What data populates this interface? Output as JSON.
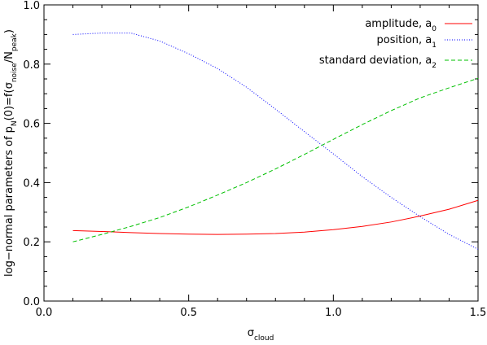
{
  "chart_data": {
    "type": "line",
    "xlabel": {
      "main": "σ",
      "sub": "cloud"
    },
    "ylabel": {
      "prefix": "log−normal parameters of p",
      "sub1": "N",
      "mid": "(0)=f(σ",
      "sub2": "noise",
      "slash": "/N",
      "sub3": "peak",
      "suffix": ")"
    },
    "xlim": [
      0.0,
      1.5
    ],
    "ylim": [
      0.0,
      1.0
    ],
    "xticks": [
      0.0,
      0.5,
      1.0,
      1.5
    ],
    "xtick_labels": [
      "0.0",
      "0.5",
      "1.0",
      "1.5"
    ],
    "yticks": [
      0.0,
      0.2,
      0.4,
      0.6,
      0.8,
      1.0
    ],
    "ytick_labels": [
      "0.0",
      "0.2",
      "0.4",
      "0.6",
      "0.8",
      "1.0"
    ],
    "grid": false,
    "legend_position": "top-right",
    "series": [
      {
        "name": "amplitude, a",
        "name_sub": "0",
        "color": "#ff0000",
        "dash": "solid",
        "x": [
          0.1,
          0.2,
          0.3,
          0.4,
          0.5,
          0.6,
          0.7,
          0.8,
          0.9,
          1.0,
          1.1,
          1.2,
          1.3,
          1.4,
          1.5
        ],
        "y": [
          0.238,
          0.235,
          0.231,
          0.228,
          0.226,
          0.225,
          0.226,
          0.228,
          0.233,
          0.241,
          0.252,
          0.267,
          0.287,
          0.31,
          0.34
        ]
      },
      {
        "name": "position, a",
        "name_sub": "1",
        "color": "#0000ff",
        "dash": "dotted",
        "x": [
          0.1,
          0.2,
          0.3,
          0.4,
          0.5,
          0.6,
          0.7,
          0.8,
          0.9,
          1.0,
          1.1,
          1.2,
          1.3,
          1.4,
          1.5
        ],
        "y": [
          0.9,
          0.905,
          0.905,
          0.878,
          0.835,
          0.785,
          0.722,
          0.648,
          0.572,
          0.497,
          0.42,
          0.35,
          0.285,
          0.225,
          0.175
        ]
      },
      {
        "name": "standard deviation, a",
        "name_sub": "2",
        "color": "#00c000",
        "dash": "dashed",
        "x": [
          0.1,
          0.2,
          0.3,
          0.4,
          0.5,
          0.6,
          0.7,
          0.8,
          0.9,
          1.0,
          1.1,
          1.2,
          1.3,
          1.4,
          1.5
        ],
        "y": [
          0.2,
          0.225,
          0.252,
          0.282,
          0.318,
          0.358,
          0.4,
          0.446,
          0.495,
          0.546,
          0.596,
          0.643,
          0.686,
          0.72,
          0.752
        ]
      }
    ]
  }
}
